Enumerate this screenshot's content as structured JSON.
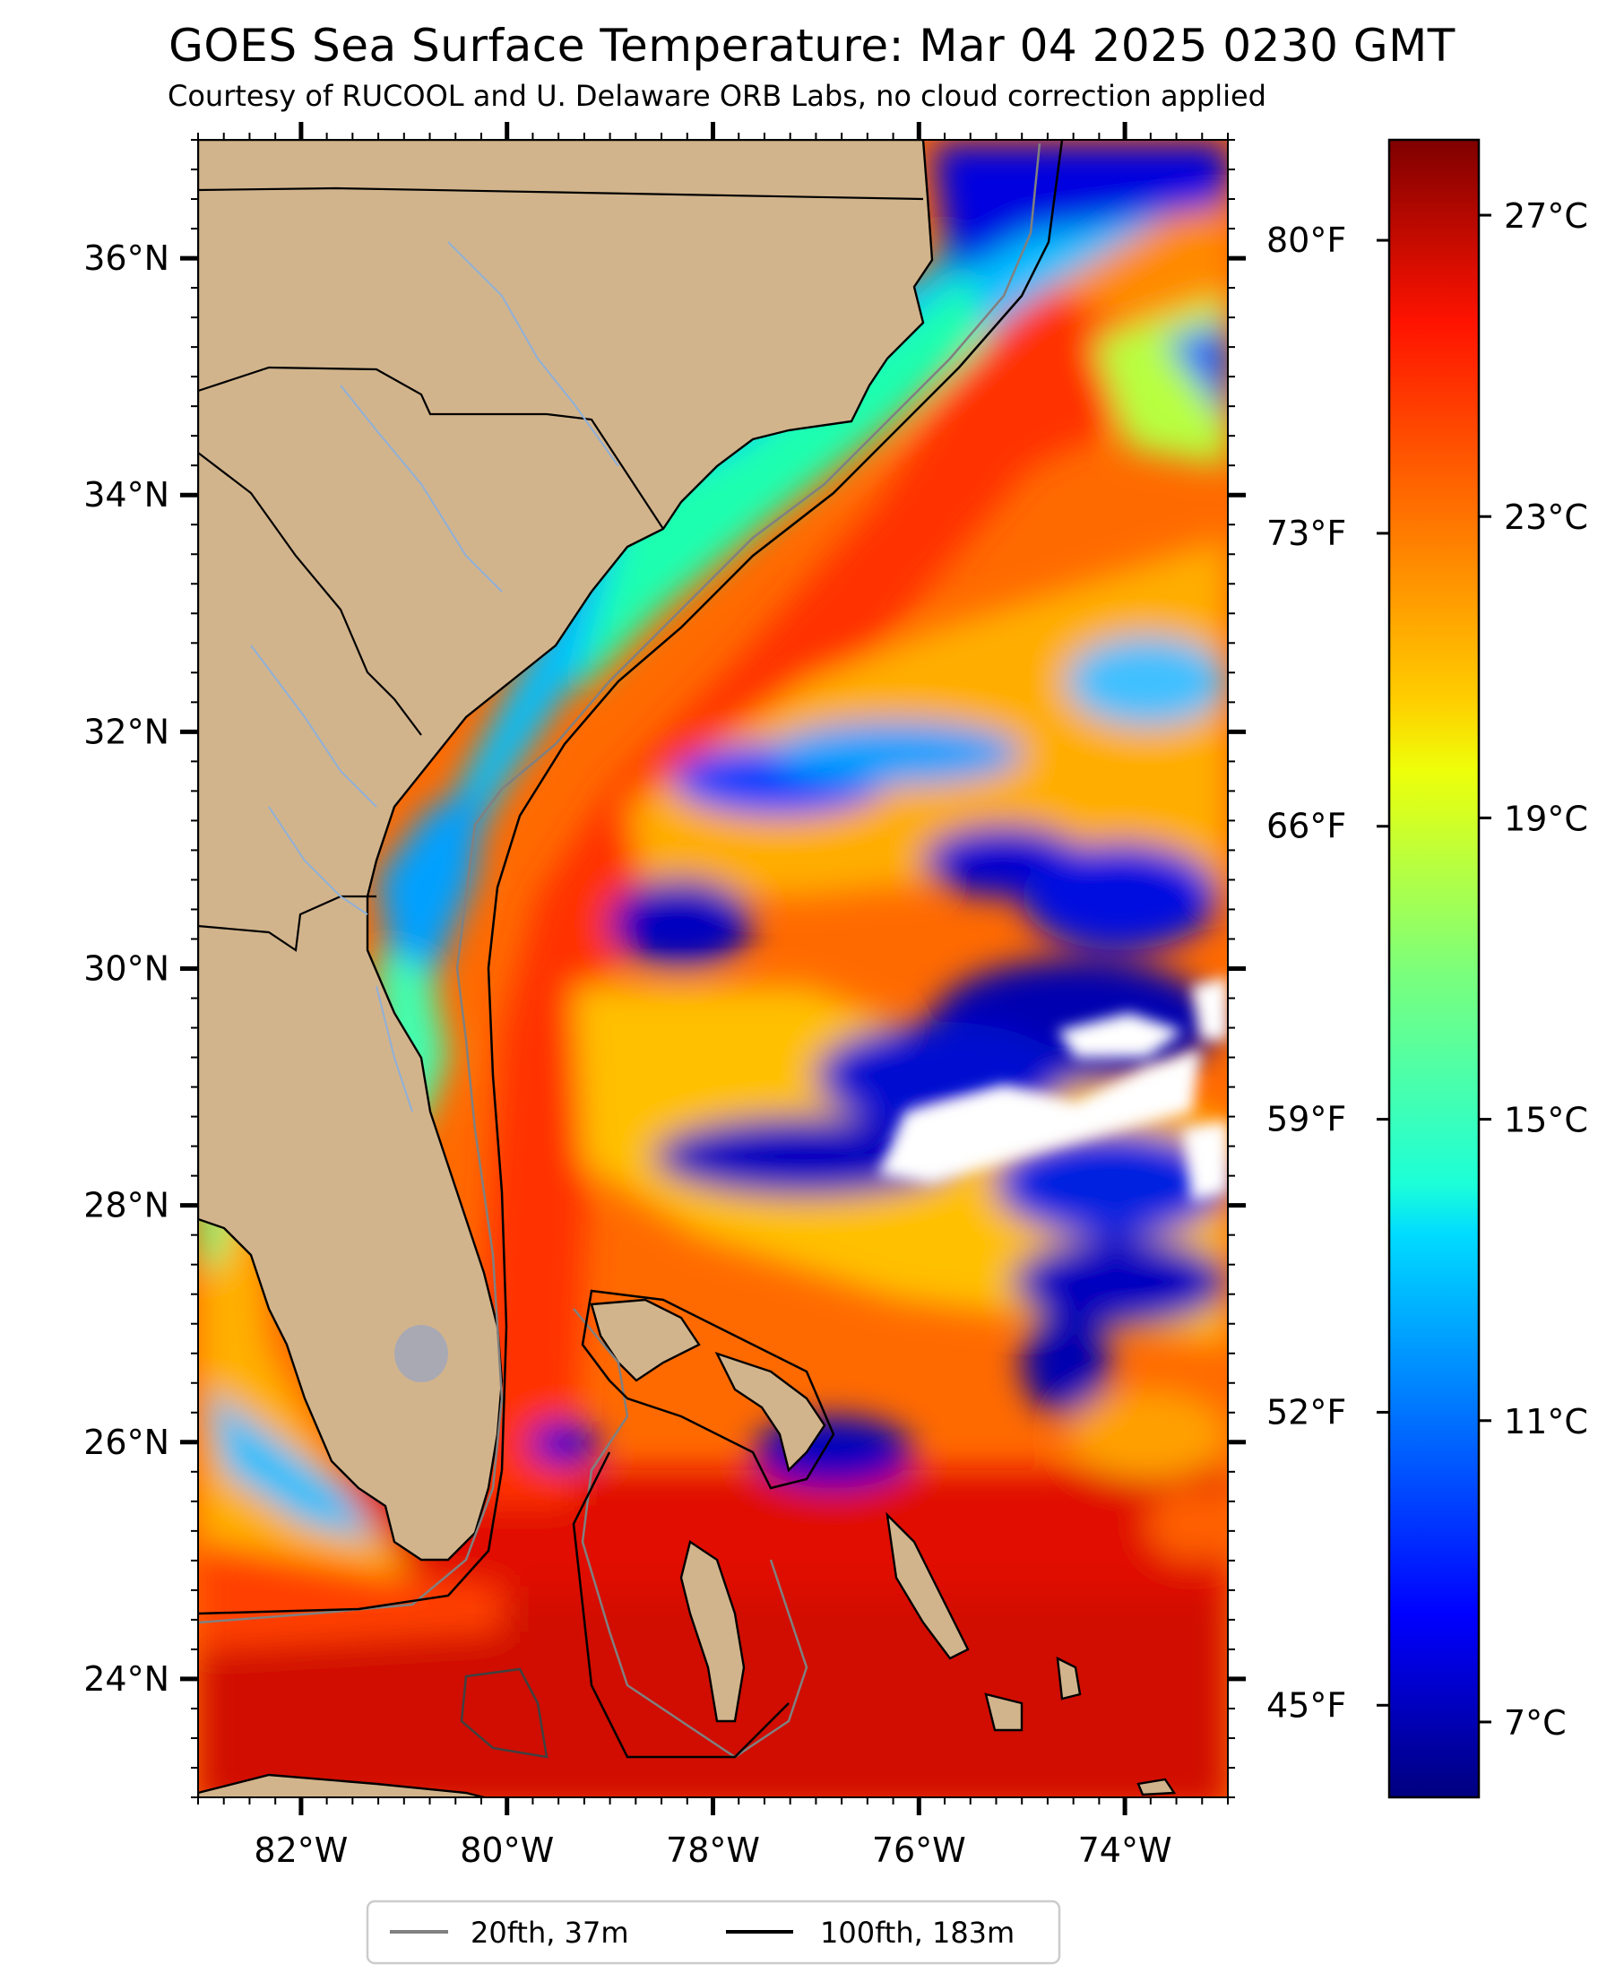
{
  "title": "GOES Sea Surface Temperature: Mar 04 2025 0230 GMT",
  "subtitle": "Courtesy of RUCOOL and U. Delaware ORB Labs, no cloud correction applied",
  "map": {
    "lon_range": [
      -83.0,
      -73.0
    ],
    "lat_range": [
      23.0,
      37.0
    ],
    "lat_ticks": [
      {
        "value": 36,
        "label": "36°N"
      },
      {
        "value": 34,
        "label": "34°N"
      },
      {
        "value": 32,
        "label": "32°N"
      },
      {
        "value": 30,
        "label": "30°N"
      },
      {
        "value": 28,
        "label": "28°N"
      },
      {
        "value": 26,
        "label": "26°N"
      },
      {
        "value": 24,
        "label": "24°N"
      }
    ],
    "lon_ticks": [
      {
        "value": -82,
        "label": "82°W"
      },
      {
        "value": -80,
        "label": "80°W"
      },
      {
        "value": -78,
        "label": "78°W"
      },
      {
        "value": -76,
        "label": "76°W"
      },
      {
        "value": -74,
        "label": "74°W"
      }
    ],
    "land_color": "#d2b48c",
    "cloud_color": "#ffffff"
  },
  "colorbar": {
    "range_c": [
      6.0,
      28.0
    ],
    "colormap": "jet",
    "celsius_ticks": [
      {
        "value": 27,
        "label": "27°C"
      },
      {
        "value": 23,
        "label": "23°C"
      },
      {
        "value": 19,
        "label": "19°C"
      },
      {
        "value": 15,
        "label": "15°C"
      },
      {
        "value": 11,
        "label": "11°C"
      },
      {
        "value": 7,
        "label": "7°C"
      }
    ],
    "fahrenheit_ticks": [
      {
        "value": 80,
        "label": "80°F"
      },
      {
        "value": 73,
        "label": "73°F"
      },
      {
        "value": 66,
        "label": "66°F"
      },
      {
        "value": 59,
        "label": "59°F"
      },
      {
        "value": 52,
        "label": "52°F"
      },
      {
        "value": 45,
        "label": "45°F"
      }
    ]
  },
  "legend": {
    "items": [
      {
        "label": "20fth, 37m",
        "color": "#808080"
      },
      {
        "label": "100fth, 183m",
        "color": "#000000"
      }
    ]
  }
}
